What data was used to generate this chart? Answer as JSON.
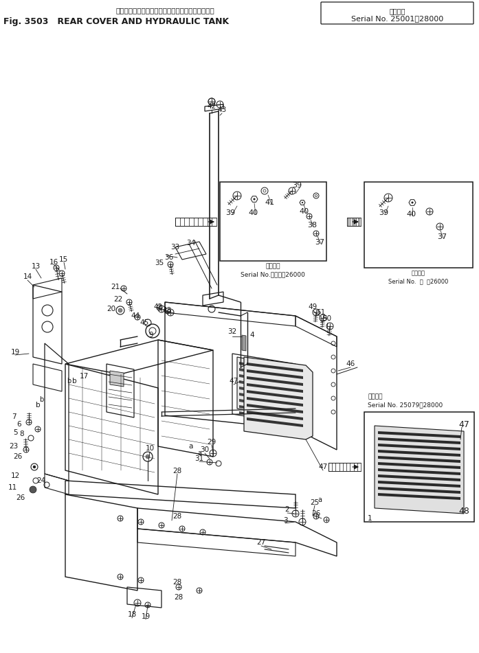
{
  "bg_color": "#ffffff",
  "line_color": "#1a1a1a",
  "fig_width": 6.97,
  "fig_height": 9.51,
  "dpi": 100,
  "title1": "リヤー　カバー　および　ハイドロリック　タンク",
  "title2": "Fig. 3503   REAR COVER AND HYDRAULIC TANK",
  "serial_box_text1": "適用号機",
  "serial_box_text2": "Serial No. 25001～28000",
  "inset1_serial1": "適用号機",
  "inset1_serial2": "Serial No.　・　～26000",
  "inset2_serial1": "適用号機",
  "inset2_serial2": "Serial No. 25079～28000"
}
